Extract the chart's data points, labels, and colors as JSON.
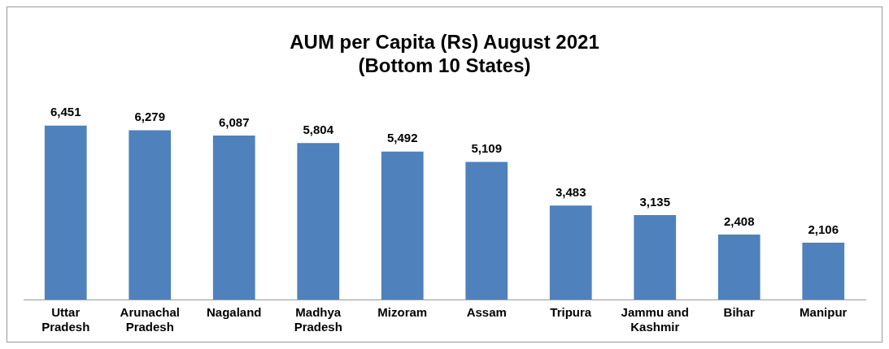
{
  "chart_data": {
    "type": "bar",
    "title": "AUM per Capita (Rs) August 2021",
    "subtitle": "(Bottom 10 States)",
    "categories": [
      "Uttar Pradesh",
      "Arunachal Pradesh",
      "Nagaland",
      "Madhya Pradesh",
      "Mizoram",
      "Assam",
      "Tripura",
      "Jammu and Kashmir",
      "Bihar",
      "Manipur"
    ],
    "values": [
      6451,
      6279,
      6087,
      5804,
      5492,
      5109,
      3483,
      3135,
      2408,
      2106
    ],
    "value_labels": [
      "6,451",
      "6,279",
      "6,087",
      "5,804",
      "5,492",
      "5,109",
      "3,483",
      "3,135",
      "2,408",
      "2,106"
    ],
    "color": "#4f81bd",
    "grid": false,
    "legend": false
  }
}
